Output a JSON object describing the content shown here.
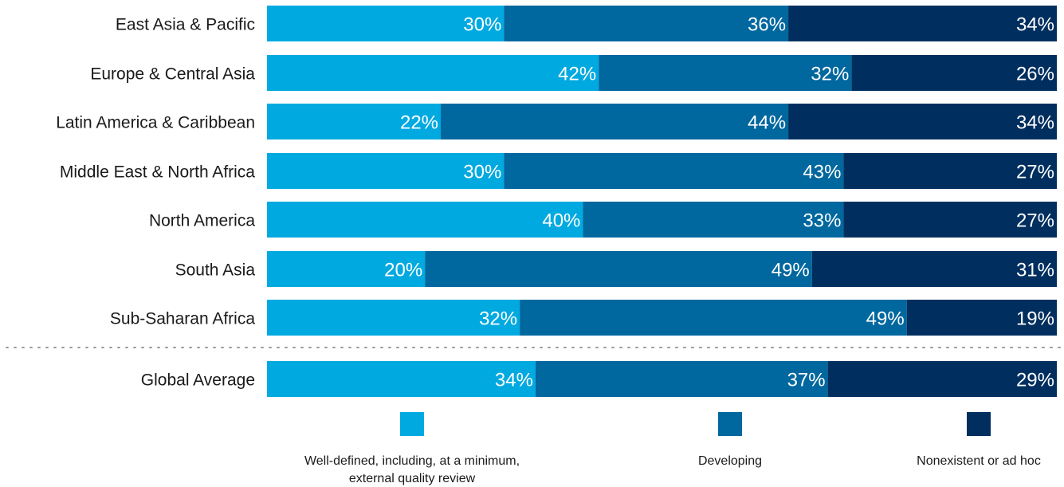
{
  "chart_data": {
    "type": "bar",
    "orientation": "horizontal",
    "stacked": true,
    "percent_stacked": true,
    "xlim": [
      0,
      100
    ],
    "grid": false,
    "legend_position": "bottom",
    "categories": [
      "East Asia & Pacific",
      "Europe & Central Asia",
      "Latin America & Caribbean",
      "Middle East & North Africa",
      "North America",
      "South Asia",
      "Sub-Saharan Africa",
      "Global Average"
    ],
    "separator_before_category": "Global Average",
    "series": [
      {
        "name": "Well-defined, including, at a minimum, external quality review",
        "legend_lines": [
          "Well-defined, including, at a minimum,",
          "external quality review"
        ],
        "color": "#00A9E0",
        "values": [
          30,
          42,
          22,
          30,
          40,
          20,
          32,
          34
        ]
      },
      {
        "name": "Developing",
        "legend_lines": [
          "Developing"
        ],
        "color": "#00679F",
        "values": [
          36,
          32,
          44,
          43,
          33,
          49,
          49,
          37
        ]
      },
      {
        "name": "Nonexistent or ad hoc",
        "legend_lines": [
          "Nonexistent or ad hoc"
        ],
        "color": "#002F5F",
        "values": [
          34,
          26,
          34,
          27,
          27,
          31,
          19,
          29
        ]
      }
    ],
    "value_suffix": "%"
  }
}
